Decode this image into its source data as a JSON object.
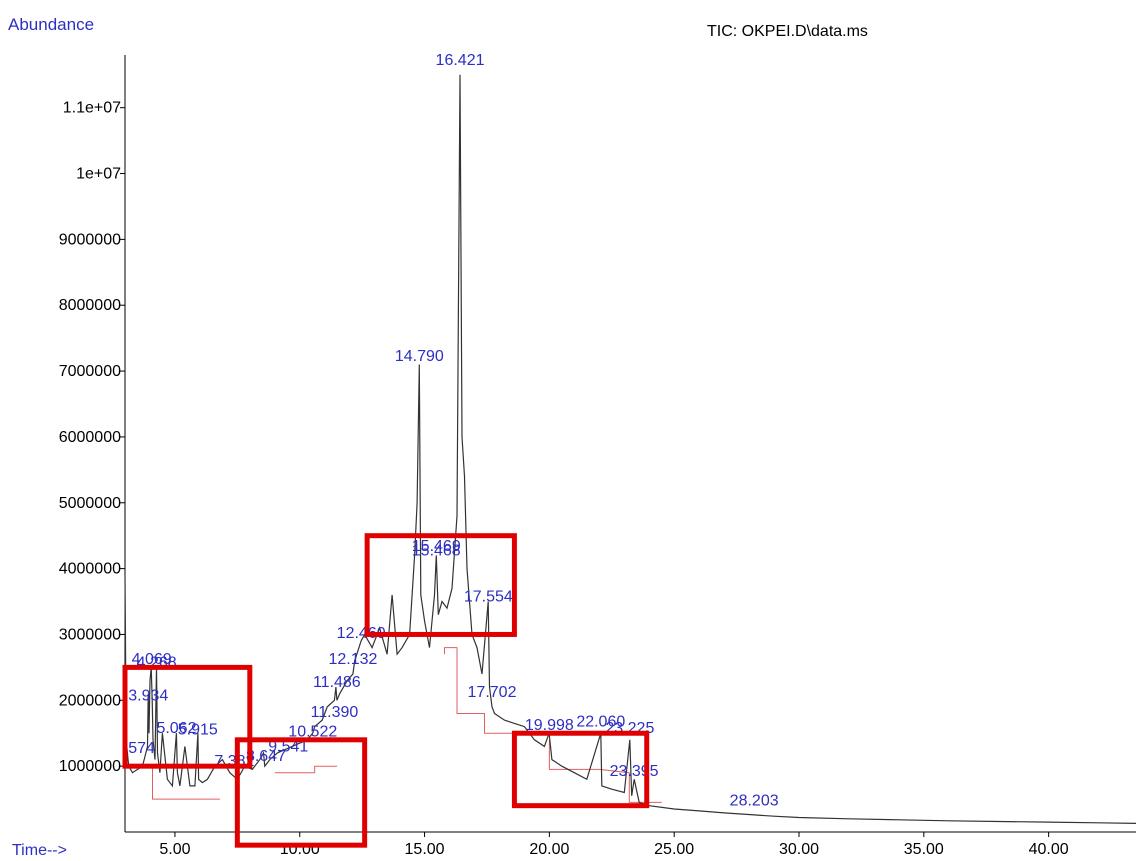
{
  "header": {
    "y_axis_title": "Abundance",
    "x_axis_title": "Time-->",
    "trace_title": "TIC: OKPEI.D\\data.ms"
  },
  "colors": {
    "axis_label": "#2d2fc4",
    "trace": "#333333",
    "baseline": "#e06060",
    "highlight_box": "#e00000"
  },
  "chart_data": {
    "type": "line",
    "title": "TIC: OKPEI.D\\data.ms",
    "xlabel": "Time-->",
    "ylabel": "Abundance",
    "xlim": [
      3.0,
      43.5
    ],
    "ylim": [
      0,
      11800000
    ],
    "grid": false,
    "x_ticks": [
      5,
      10,
      15,
      20,
      25,
      30,
      35,
      40
    ],
    "x_tick_labels": [
      "5.00",
      "10.00",
      "15.00",
      "20.00",
      "25.00",
      "30.00",
      "35.00",
      "40.00"
    ],
    "y_ticks": [
      1000000,
      2000000,
      3000000,
      4000000,
      5000000,
      6000000,
      7000000,
      8000000,
      9000000,
      10000000,
      11000000
    ],
    "y_tick_labels": [
      "1000000",
      "2000000",
      "3000000",
      "4000000",
      "5000000",
      "6000000",
      "7000000",
      "8000000",
      "9000000",
      "1e+07",
      "1.1e+07"
    ],
    "series": [
      {
        "x": [
          3.0,
          3.05,
          3.15,
          3.3,
          3.5,
          3.7,
          3.9,
          3.93,
          3.96,
          4.0,
          4.05,
          4.09,
          4.12,
          4.2,
          4.26,
          4.3,
          4.4,
          4.5,
          4.7,
          4.9,
          5.06,
          5.1,
          5.2,
          5.4,
          5.6,
          5.8,
          5.92,
          5.95,
          6.1,
          6.3,
          6.6,
          6.9,
          7.2,
          7.5,
          7.8,
          8.1,
          8.4,
          8.55,
          8.6,
          8.8,
          9.1,
          9.4,
          9.7,
          10.0,
          10.3,
          10.52,
          10.6,
          10.9,
          11.1,
          11.39,
          11.45,
          11.49,
          11.6,
          11.9,
          12.13,
          12.2,
          12.46,
          12.6,
          12.9,
          13.2,
          13.5,
          13.7,
          13.9,
          14.1,
          14.4,
          14.6,
          14.7,
          14.79,
          14.85,
          15.0,
          15.2,
          15.4,
          15.47,
          15.55,
          15.7,
          15.9,
          16.1,
          16.3,
          16.42,
          16.5,
          16.6,
          16.7,
          16.9,
          17.1,
          17.3,
          17.55,
          17.6,
          17.7,
          17.8,
          18.2,
          18.6,
          19.0,
          19.4,
          19.8,
          19.99,
          20.1,
          20.5,
          21.0,
          21.5,
          22.06,
          22.1,
          22.5,
          23.0,
          23.22,
          23.3,
          23.4,
          23.6,
          24.0,
          25.0,
          26.0,
          27.0,
          28.2,
          29.0,
          30.0,
          32.0,
          34.0,
          36.0,
          38.0,
          40.0,
          42.0,
          43.5
        ],
        "y": [
          3900000,
          1400000,
          1000000,
          900000,
          950000,
          1000000,
          1300000,
          2100000,
          1500000,
          2300000,
          2500000,
          2000000,
          1400000,
          1100000,
          2500000,
          1200000,
          900000,
          1500000,
          800000,
          700000,
          1500000,
          900000,
          700000,
          1300000,
          700000,
          700000,
          1500000,
          800000,
          750000,
          800000,
          1000000,
          1100000,
          900000,
          800000,
          1000000,
          950000,
          1100000,
          1200000,
          1000000,
          1100000,
          1200000,
          1250000,
          1300000,
          1350000,
          1400000,
          1500000,
          1600000,
          1700000,
          1900000,
          2000000,
          2200000,
          2000000,
          2100000,
          2300000,
          2400000,
          2600000,
          2900000,
          3000000,
          2800000,
          3100000,
          2700000,
          3600000,
          2700000,
          2800000,
          3000000,
          4200000,
          5000000,
          7100000,
          3600000,
          3200000,
          2800000,
          3600000,
          4200000,
          3300000,
          3500000,
          3400000,
          3700000,
          4800000,
          11500000,
          6000000,
          5400000,
          4000000,
          3000000,
          2800000,
          2400000,
          3500000,
          2200000,
          1900000,
          1800000,
          1700000,
          1650000,
          1600000,
          1400000,
          1300000,
          1500000,
          1100000,
          1000000,
          900000,
          800000,
          1500000,
          700000,
          650000,
          600000,
          1400000,
          550000,
          800000,
          450000,
          400000,
          350000,
          320000,
          290000,
          260000,
          240000,
          220000,
          200000,
          185000,
          170000,
          160000,
          150000,
          140000,
          130000
        ]
      }
    ],
    "peak_labels": [
      {
        "text": "16.421",
        "x": 16.421,
        "y": 11650000
      },
      {
        "text": "14.790",
        "x": 14.79,
        "y": 7150000
      },
      {
        "text": "15.468",
        "x": 15.468,
        "y": 4200000
      },
      {
        "text": "15.469",
        "x": 15.469,
        "y": 4270000
      },
      {
        "text": "17.554",
        "x": 17.554,
        "y": 3500000
      },
      {
        "text": "12.460",
        "x": 12.46,
        "y": 2950000
      },
      {
        "text": "12.132",
        "x": 12.132,
        "y": 2550000
      },
      {
        "text": "11.486",
        "x": 11.486,
        "y": 2200000
      },
      {
        "text": "11.390",
        "x": 11.39,
        "y": 1750000
      },
      {
        "text": "10.522",
        "x": 10.522,
        "y": 1450000
      },
      {
        "text": "9.541",
        "x": 9.541,
        "y": 1220000
      },
      {
        "text": "8.647",
        "x": 8.647,
        "y": 1080000
      },
      {
        "text": "7.382",
        "x": 7.382,
        "y": 1000000
      },
      {
        "text": "17.702",
        "x": 17.702,
        "y": 2050000
      },
      {
        "text": "19.998",
        "x": 19.998,
        "y": 1550000
      },
      {
        "text": "22.060",
        "x": 22.06,
        "y": 1600000
      },
      {
        "text": "23.225",
        "x": 23.225,
        "y": 1500000
      },
      {
        "text": "23.395",
        "x": 23.395,
        "y": 850000
      },
      {
        "text": "28.203",
        "x": 28.203,
        "y": 400000
      },
      {
        "text": "4.069",
        "x": 4.069,
        "y": 2550000
      },
      {
        "text": "4.268",
        "x": 4.268,
        "y": 2500000
      },
      {
        "text": "3.934",
        "x": 3.934,
        "y": 2000000
      },
      {
        "text": "5.062",
        "x": 5.062,
        "y": 1500000
      },
      {
        "text": "5.915",
        "x": 5.915,
        "y": 1480000
      },
      {
        "text": ".574",
        "x": 3.574,
        "y": 1200000
      }
    ],
    "baseline_steps": [
      {
        "x": [
          4.0,
          4.1,
          4.1,
          6.8
        ],
        "y": [
          1000000,
          1000000,
          500000,
          500000
        ]
      },
      {
        "x": [
          9.0,
          10.6,
          10.6,
          11.5
        ],
        "y": [
          900000,
          900000,
          1000000,
          1000000
        ]
      },
      {
        "x": [
          15.8,
          15.8,
          16.3,
          16.3,
          17.4,
          17.4,
          18.9
        ],
        "y": [
          2700000,
          2800000,
          2800000,
          1800000,
          1800000,
          1500000,
          1500000
        ]
      },
      {
        "x": [
          20.0,
          20.0,
          22.0,
          23.2,
          23.2,
          24.5
        ],
        "y": [
          1400000,
          950000,
          950000,
          900000,
          450000,
          450000
        ]
      }
    ],
    "highlight_regions": [
      {
        "x": [
          3.0,
          8.0
        ],
        "y": [
          1000000,
          2500000
        ]
      },
      {
        "x": [
          7.5,
          12.6
        ],
        "y": [
          -200000,
          1400000
        ]
      },
      {
        "x": [
          12.7,
          18.6
        ],
        "y": [
          3000000,
          4500000
        ]
      },
      {
        "x": [
          18.6,
          23.9
        ],
        "y": [
          400000,
          1500000
        ]
      }
    ]
  }
}
